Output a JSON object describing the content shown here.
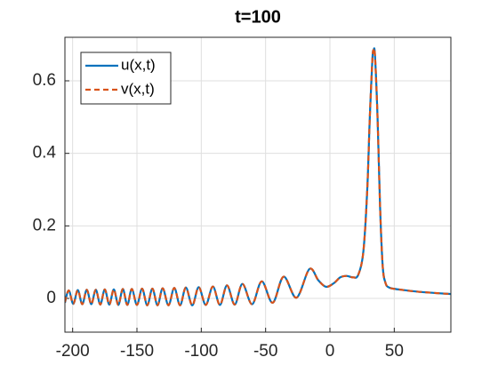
{
  "chart_data": {
    "type": "line",
    "title": "t=100",
    "x": [
      -206,
      -203,
      -199.5,
      -196,
      -192.5,
      -189,
      -185.5,
      -182,
      -178.5,
      -175,
      -171.5,
      -168,
      -164.5,
      -161,
      -157.5,
      -154,
      -150,
      -146,
      -142,
      -138,
      -134,
      -130,
      -125.5,
      -121,
      -116.5,
      -112,
      -107,
      -102,
      -96.5,
      -91,
      -85.5,
      -80,
      -74,
      -68,
      -60.5,
      -53,
      -44.5,
      -36,
      -26,
      -16,
      -9,
      -3,
      3,
      8,
      13,
      18,
      22,
      26,
      29,
      31,
      33,
      34,
      35,
      37,
      39,
      41,
      43,
      46,
      55,
      70,
      94
    ],
    "series": [
      {
        "name": "u(x,t)",
        "color": "#0072bd",
        "dash": false,
        "values": [
          -0.012,
          0.022,
          -0.015,
          0.023,
          -0.016,
          0.024,
          -0.016,
          0.024,
          -0.017,
          0.025,
          -0.017,
          0.025,
          -0.018,
          0.026,
          -0.018,
          0.026,
          -0.018,
          0.027,
          -0.019,
          0.027,
          -0.019,
          0.028,
          -0.019,
          0.029,
          -0.019,
          0.03,
          -0.019,
          0.031,
          -0.018,
          0.033,
          -0.018,
          0.036,
          -0.017,
          0.04,
          -0.016,
          0.047,
          -0.012,
          0.06,
          0.002,
          0.081,
          0.05,
          0.032,
          0.042,
          0.058,
          0.062,
          0.058,
          0.065,
          0.13,
          0.3,
          0.5,
          0.66,
          0.685,
          0.67,
          0.5,
          0.25,
          0.09,
          0.045,
          0.03,
          0.024,
          0.018,
          0.012
        ]
      },
      {
        "name": "v(x,t)",
        "color": "#d95319",
        "dash": true,
        "values": [
          -0.01,
          0.022,
          -0.015,
          0.023,
          -0.016,
          0.024,
          -0.016,
          0.024,
          -0.017,
          0.025,
          -0.017,
          0.025,
          -0.018,
          0.026,
          -0.018,
          0.026,
          -0.018,
          0.027,
          -0.019,
          0.027,
          -0.019,
          0.028,
          -0.019,
          0.029,
          -0.019,
          0.03,
          -0.019,
          0.031,
          -0.018,
          0.033,
          -0.018,
          0.036,
          -0.017,
          0.04,
          -0.016,
          0.047,
          -0.012,
          0.06,
          0.002,
          0.081,
          0.05,
          0.032,
          0.042,
          0.058,
          0.062,
          0.058,
          0.065,
          0.13,
          0.3,
          0.5,
          0.66,
          0.685,
          0.67,
          0.5,
          0.25,
          0.09,
          0.045,
          0.03,
          0.024,
          0.018,
          0.012
        ]
      }
    ],
    "xlim": [
      -206,
      94
    ],
    "ylim": [
      -0.093,
      0.72
    ],
    "xticks": [
      -200,
      -150,
      -100,
      -50,
      0,
      50
    ],
    "yticks": [
      0,
      0.2,
      0.4,
      0.6
    ],
    "grid": true,
    "legend": "northwest"
  }
}
